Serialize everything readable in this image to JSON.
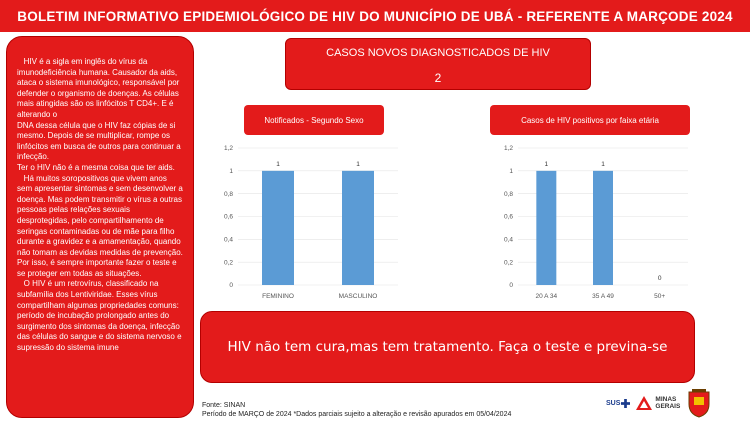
{
  "header": {
    "title": "BOLETIM INFORMATIVO EPIDEMIOLÓGICO DE HIV DO MUNICÍPIO DE UBÁ - REFERENTE A MARÇODE 2024"
  },
  "info": {
    "text": "   HIV é a sigla em inglês do vírus da imunodeficiência humana. Causador da aids,\nataca o sistema imunológico, responsável por defender o organismo de doenças. As células mais atingidas são os linfócitos T CD4+. E é alterando o\nDNA dessa célula que o HIV faz cópias de si mesmo. Depois de se multiplicar, rompe os linfócitos em busca de outros para continuar a infecção.\nTer o HIV não é a mesma coisa que ter aids.\n   Há muitos soropositivos que vivem anos sem apresentar sintomas e sem desenvolver a doença. Mas podem transmitir o vírus a outras pessoas pelas relações sexuais desprotegidas, pelo compartilhamento de seringas contaminadas ou de mãe para filho durante a gravidez e a amamentação, quando não tomam as devidas medidas de prevenção. Por isso, é sempre importante fazer o teste e se proteger em todas as situações.\n   O HIV é um retrovírus, classificado na subfamília dos Lentiviridae. Esses vírus compartilham algumas propriedades comuns: período de incubação prolongado antes do surgimento dos sintomas da doença, infecção das células do sangue e do sistema nervoso e supressão do sistema imune"
  },
  "cases": {
    "title": "CASOS NOVOS DIAGNOSTICADOS  DE HIV",
    "count": "2"
  },
  "message": "HIV não tem cura,mas tem tratamento. Faça o teste e previna-se",
  "footer": {
    "source": "Fonte: SINAN",
    "period": "Período de MARÇO de 2024 *Dados parciais sujeito a alteração e revisão apurados em 05/04/2024"
  },
  "logos": {
    "sus": "SUS",
    "mg_line1": "MINAS",
    "mg_line2": "GERAIS"
  },
  "colors": {
    "banner": "#e31b1b",
    "bar": "#5b9bd5",
    "text_on_red": "#ffffff"
  },
  "chart_data": [
    {
      "type": "bar",
      "title": "Notificados - Segundo Sexo",
      "categories": [
        "FEMININO",
        "MASCULINO"
      ],
      "values": [
        1,
        1
      ],
      "ylim": [
        0,
        1.2
      ],
      "yticks": [
        "0",
        "0,2",
        "0,4",
        "0,6",
        "0,8",
        "1",
        "1,2"
      ],
      "data_labels": [
        "1",
        "1"
      ],
      "grid": true
    },
    {
      "type": "bar",
      "title": "Casos de HIV positivos por faixa etária",
      "categories": [
        "20 A 34",
        "35 A 49",
        "50+"
      ],
      "values": [
        1,
        1,
        0
      ],
      "ylim": [
        0,
        1.2
      ],
      "yticks": [
        "0",
        "0,2",
        "0,4",
        "0,6",
        "0,8",
        "1",
        "1,2"
      ],
      "data_labels": [
        "1",
        "1",
        "0"
      ],
      "grid": true
    }
  ]
}
